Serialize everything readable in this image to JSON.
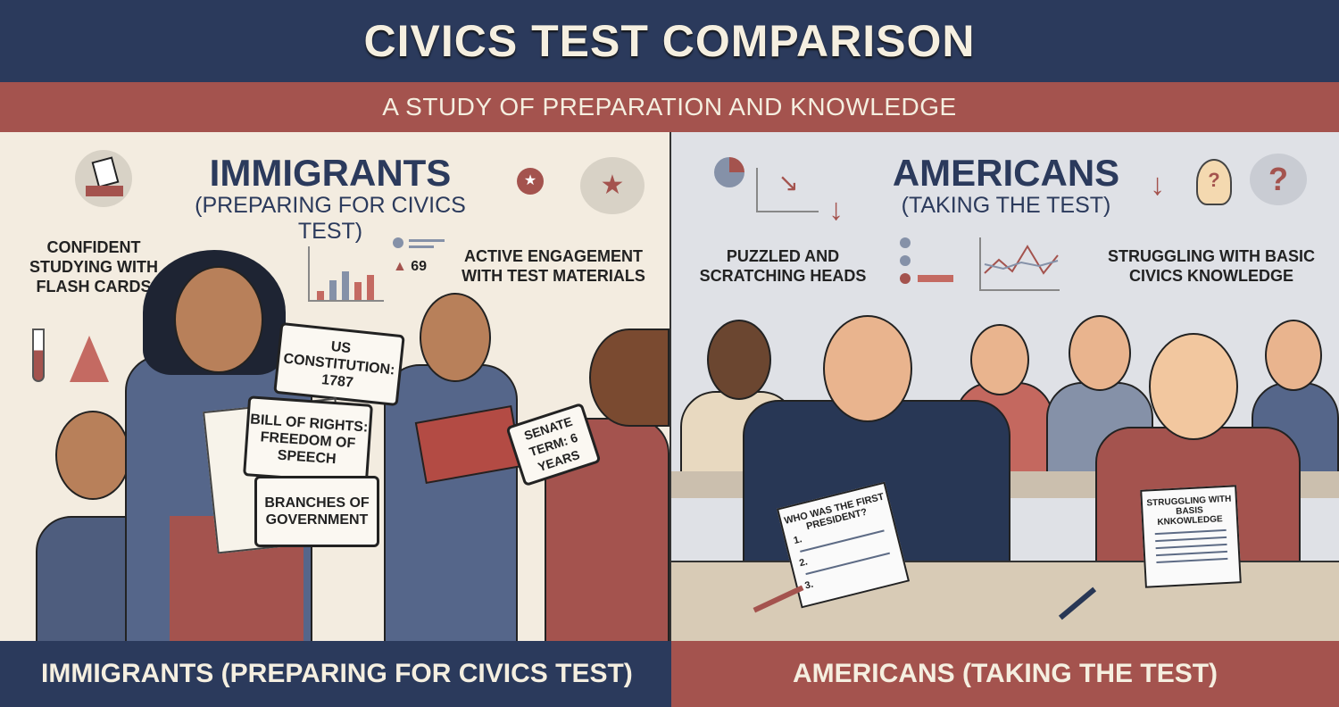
{
  "header": {
    "title": "CIVICS TEST COMPARISON",
    "subtitle": "A STUDY OF PREPARATION AND KNOWLEDGE"
  },
  "left": {
    "heading": "IMMIGRANTS",
    "subheading": "(PREPARING FOR CIVICS TEST)",
    "captions": [
      "CONFIDENT STUDYING WITH FLASH CARDS",
      "ACTIVE ENGAGEMENT WITH TEST MATERIALS"
    ],
    "stat": "69",
    "flash_cards": [
      "US CONSTITUTION: 1787",
      "BILL OF RIGHTS: FREEDOM OF SPEECH",
      "BRANCHES OF GOVERNMENT",
      "SENATE TERM: 6 YEARS"
    ],
    "footer": "IMMIGRANTS (PREPARING FOR CIVICS TEST)"
  },
  "right": {
    "heading": "AMERICANS",
    "subheading": "(TAKING THE TEST)",
    "captions": [
      "PUZZLED AND SCRATCHING HEADS",
      "STRUGGLING WITH BASIC CIVICS KNOWLEDGE"
    ],
    "papers": [
      "WHO WAS THE FIRST PRESIDENT?",
      "STRUGGLING WITH BASIS KNKOWLEDGE"
    ],
    "paper_numbers": [
      "1.",
      "2.",
      "3."
    ],
    "footer": "AMERICANS (TAKING THE TEST)"
  },
  "colors": {
    "navy": "#2b3a5c",
    "red": "#a4534e",
    "cream": "#f3ece0",
    "grey": "#dfe1e6"
  },
  "icons": [
    "ballot-box-icon",
    "chemistry-flask-icon",
    "bar-chart-icon",
    "award-icon",
    "pie-chart-icon",
    "trend-down-icon",
    "down-arrow-icon",
    "lightbulb-icon",
    "question-bubble-icon",
    "line-chart-icon",
    "list-icon"
  ]
}
